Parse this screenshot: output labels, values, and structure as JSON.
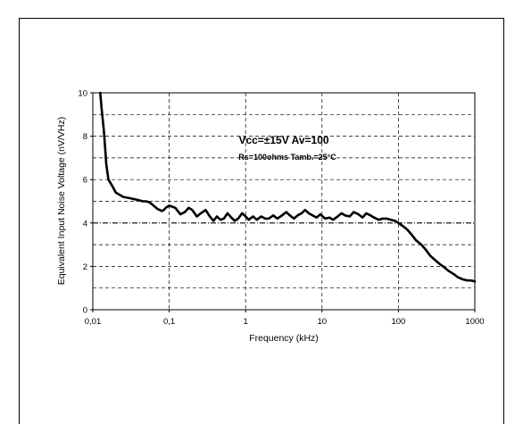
{
  "chart_data": {
    "type": "line",
    "xlabel": "Frequency (kHz)",
    "ylabel": "Equivalent Input Noise Voltage (nV/VHz)",
    "x_scale": "log",
    "xlim": [
      0.01,
      1000
    ],
    "ylim": [
      0,
      10
    ],
    "x_ticks": [
      "0,01",
      "0,1",
      "1",
      "10",
      "100",
      "1000"
    ],
    "y_ticks": [
      "0",
      "2",
      "4",
      "6",
      "8",
      "10"
    ],
    "grid": true,
    "annotations": [
      "Vcc=±15V  Av=100",
      "Rs=100ohms  Tamb.=25°C"
    ],
    "series": [
      {
        "x": [
          0.0125,
          0.013,
          0.014,
          0.015,
          0.016,
          0.018,
          0.02,
          0.025,
          0.03,
          0.035,
          0.04,
          0.045,
          0.05,
          0.055,
          0.06,
          0.065,
          0.07,
          0.075,
          0.08,
          0.085,
          0.09,
          0.1,
          0.11,
          0.12,
          0.14,
          0.16,
          0.18,
          0.2,
          0.23,
          0.26,
          0.3,
          0.34,
          0.38,
          0.42,
          0.47,
          0.52,
          0.58,
          0.65,
          0.72,
          0.8,
          0.9,
          1.0,
          1.1,
          1.25,
          1.4,
          1.6,
          1.8,
          2.0,
          2.3,
          2.6,
          3.0,
          3.4,
          3.8,
          4.3,
          4.8,
          5.4,
          6.0,
          6.7,
          7.5,
          8.5,
          9.5,
          11,
          12.5,
          14,
          16,
          18,
          20,
          23,
          26,
          30,
          34,
          38,
          43,
          48,
          55,
          62,
          70,
          80,
          90,
          100,
          115,
          130,
          150,
          170,
          200,
          230,
          260,
          300,
          350,
          400,
          450,
          500,
          550,
          600,
          700,
          800,
          900,
          1000
        ],
        "y": [
          10,
          9.3,
          8.2,
          6.7,
          6.0,
          5.7,
          5.4,
          5.2,
          5.15,
          5.1,
          5.05,
          5.0,
          5.0,
          4.95,
          4.85,
          4.75,
          4.65,
          4.6,
          4.55,
          4.6,
          4.7,
          4.8,
          4.75,
          4.7,
          4.4,
          4.5,
          4.7,
          4.6,
          4.3,
          4.45,
          4.6,
          4.3,
          4.1,
          4.3,
          4.15,
          4.2,
          4.45,
          4.25,
          4.1,
          4.2,
          4.45,
          4.3,
          4.15,
          4.3,
          4.15,
          4.3,
          4.2,
          4.2,
          4.35,
          4.2,
          4.35,
          4.5,
          4.35,
          4.2,
          4.35,
          4.45,
          4.6,
          4.45,
          4.35,
          4.25,
          4.4,
          4.2,
          4.25,
          4.15,
          4.3,
          4.45,
          4.35,
          4.3,
          4.5,
          4.4,
          4.25,
          4.45,
          4.35,
          4.25,
          4.15,
          4.2,
          4.2,
          4.15,
          4.1,
          4.0,
          3.85,
          3.7,
          3.45,
          3.2,
          3.0,
          2.75,
          2.5,
          2.3,
          2.1,
          1.95,
          1.8,
          1.7,
          1.6,
          1.5,
          1.4,
          1.35,
          1.35,
          1.3
        ]
      }
    ]
  }
}
